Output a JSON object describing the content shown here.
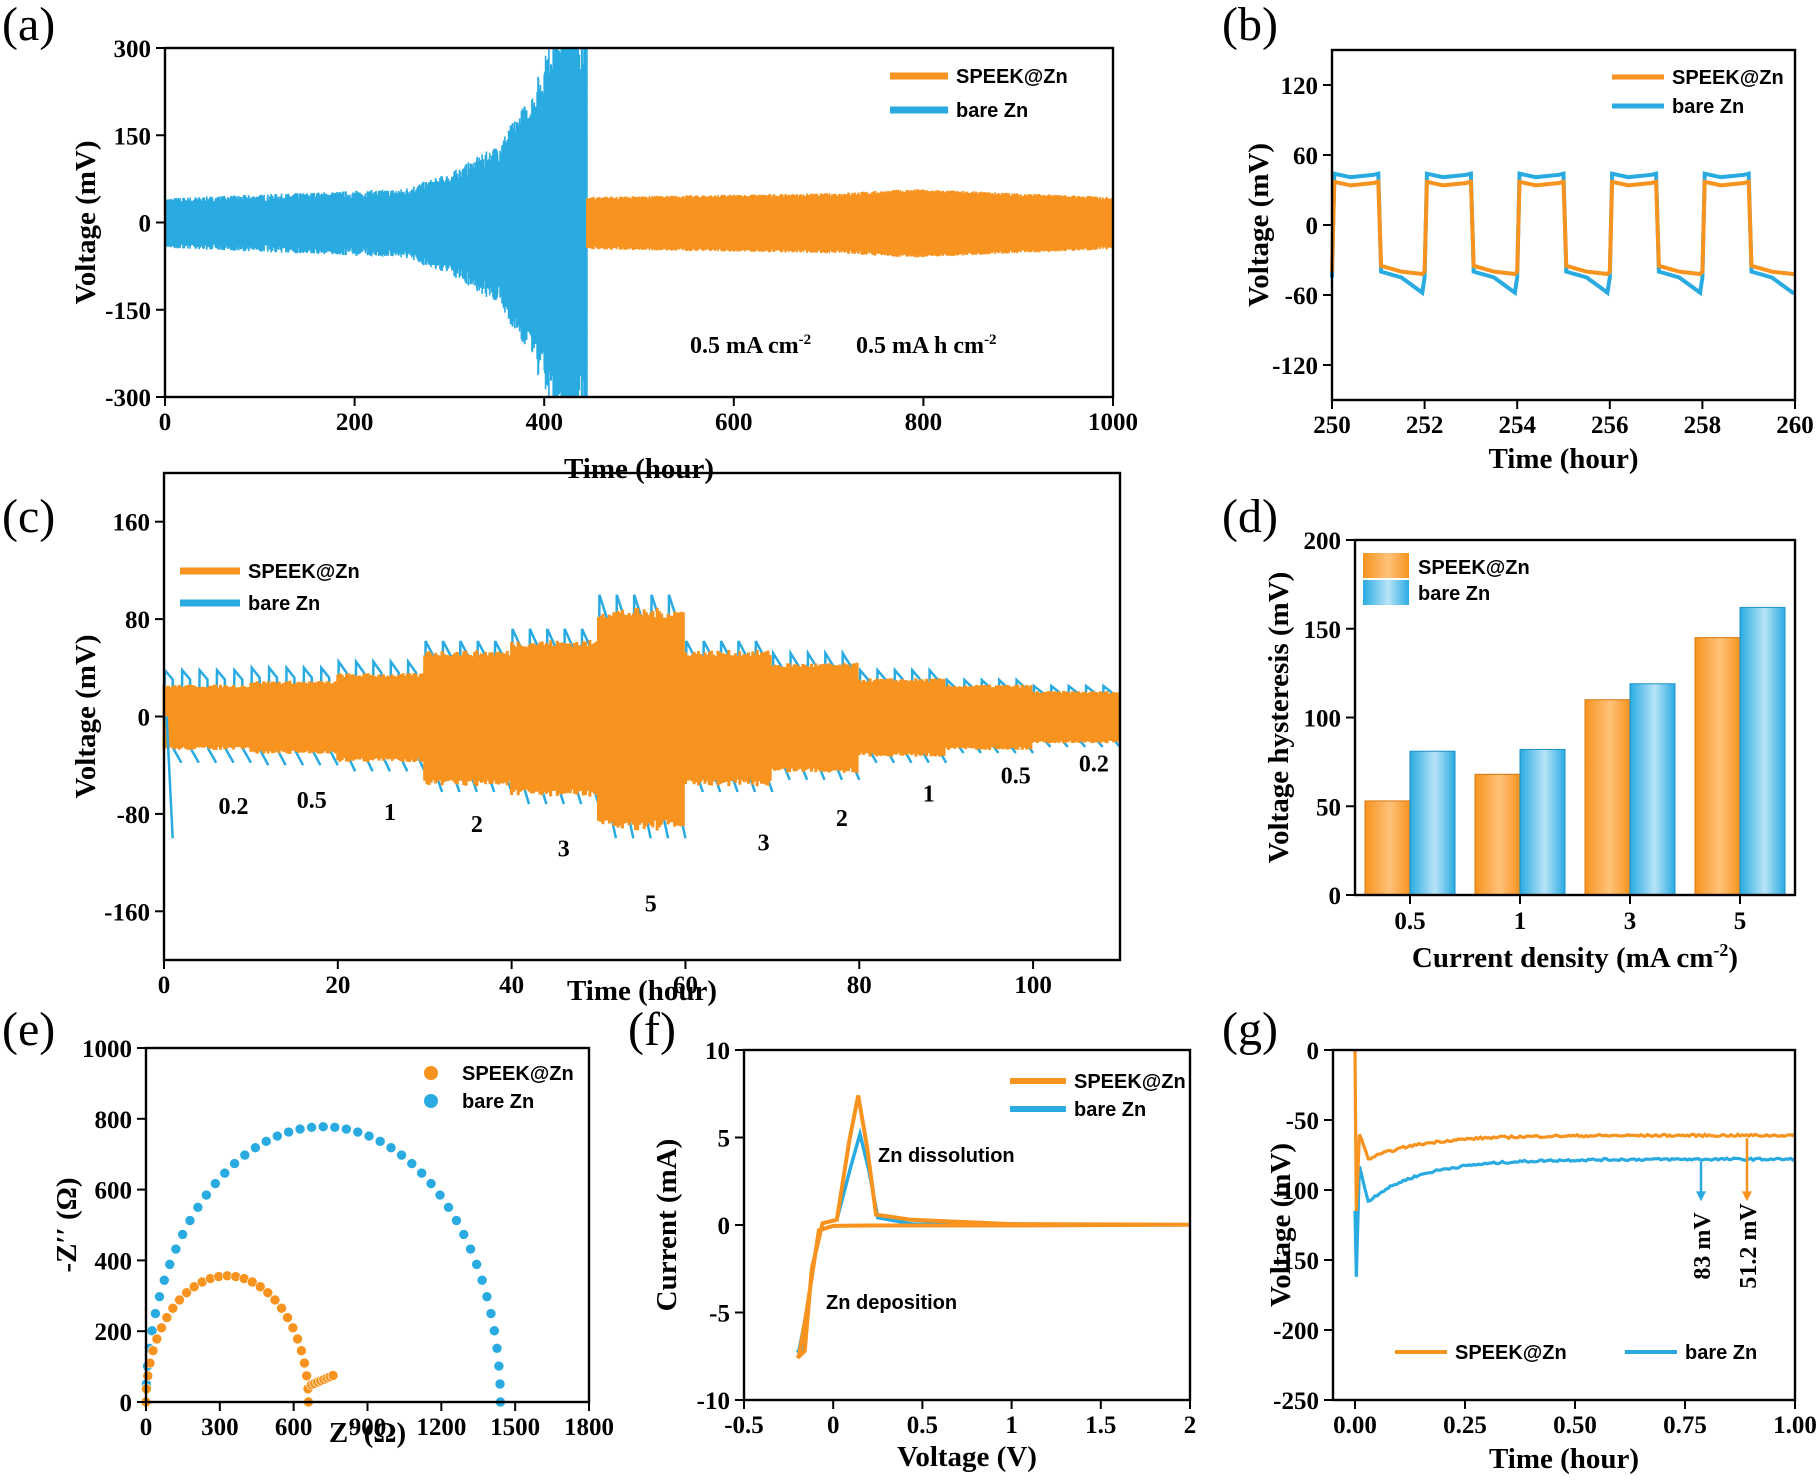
{
  "colors": {
    "speek": "#F7931E",
    "bare": "#29ABE2",
    "axis": "#000000"
  },
  "chart_data": [
    {
      "id": "a",
      "panel_label": "(a)",
      "type": "line",
      "xlabel": "Time (hour)",
      "ylabel": "Voltage (mV)",
      "xlim": [
        0,
        1000
      ],
      "ylim": [
        -300,
        300
      ],
      "xticks": [
        0,
        200,
        400,
        600,
        800,
        1000
      ],
      "yticks": [
        -300,
        -150,
        0,
        150,
        300
      ],
      "series": [
        {
          "name": "SPEEK@Zn",
          "color": "speek",
          "t_range": [
            0,
            1000
          ],
          "amplitude_mV": [
            [
              0,
              42
            ],
            [
              440,
              42
            ],
            [
              700,
              48
            ],
            [
              790,
              55
            ],
            [
              1000,
              42
            ]
          ]
        },
        {
          "name": "bare Zn",
          "color": "bare",
          "t_range": [
            0,
            445
          ],
          "amplitude_mV": [
            [
              0,
              35
            ],
            [
              100,
              40
            ],
            [
              250,
              48
            ],
            [
              300,
              70
            ],
            [
              350,
              110
            ],
            [
              390,
              190
            ],
            [
              410,
              300
            ],
            [
              445,
              300
            ]
          ]
        }
      ],
      "annotation_1": "0.5 mA cm",
      "annotation_1_sup": "-2",
      "annotation_2": "0.5 mA h cm",
      "annotation_2_sup": "-2"
    },
    {
      "id": "b",
      "panel_label": "(b)",
      "type": "line",
      "xlabel": "Time (hour)",
      "ylabel": "Voltage (mV)",
      "xlim": [
        250,
        260
      ],
      "ylim": [
        -150,
        150
      ],
      "xticks": [
        250,
        252,
        254,
        256,
        258,
        260
      ],
      "yticks": [
        -120,
        -60,
        0,
        60,
        120
      ],
      "series": [
        {
          "name": "SPEEK@Zn",
          "color": "speek",
          "charge_mV": 37,
          "discharge_mV": -40
        },
        {
          "name": "bare Zn",
          "color": "bare",
          "charge_mV": 44,
          "discharge_mV": -45,
          "spike_mV": -58
        }
      ]
    },
    {
      "id": "c",
      "panel_label": "(c)",
      "type": "line",
      "xlabel": "Time (hour)",
      "ylabel": "Voltage (mV)",
      "xlim": [
        0,
        110
      ],
      "ylim": [
        -200,
        200
      ],
      "xticks": [
        0,
        20,
        40,
        60,
        80,
        100
      ],
      "yticks": [
        -160,
        -80,
        0,
        80,
        160
      ],
      "rate_segments": [
        {
          "label": "0.2",
          "t": [
            0,
            10
          ],
          "speek_mV": 25,
          "bare_mV": 38
        },
        {
          "label": "0.5",
          "t": [
            10,
            20
          ],
          "speek_mV": 28,
          "bare_mV": 40
        },
        {
          "label": "1",
          "t": [
            20,
            30
          ],
          "speek_mV": 34,
          "bare_mV": 45
        },
        {
          "label": "2",
          "t": [
            30,
            40
          ],
          "speek_mV": 52,
          "bare_mV": 62
        },
        {
          "label": "3",
          "t": [
            40,
            50
          ],
          "speek_mV": 60,
          "bare_mV": 72
        },
        {
          "label": "5",
          "t": [
            50,
            60
          ],
          "speek_mV": 85,
          "bare_mV": 100
        },
        {
          "label": "3",
          "t": [
            60,
            70
          ],
          "speek_mV": 52,
          "bare_mV": 62
        },
        {
          "label": "2",
          "t": [
            70,
            80
          ],
          "speek_mV": 42,
          "bare_mV": 52
        },
        {
          "label": "1",
          "t": [
            80,
            90
          ],
          "speek_mV": 30,
          "bare_mV": 38
        },
        {
          "label": "0.5",
          "t": [
            90,
            100
          ],
          "speek_mV": 25,
          "bare_mV": 30
        },
        {
          "label": "0.2",
          "t": [
            100,
            110
          ],
          "speek_mV": 20,
          "bare_mV": 25
        }
      ],
      "series": [
        {
          "name": "SPEEK@Zn",
          "color": "speek"
        },
        {
          "name": "bare Zn",
          "color": "bare"
        }
      ]
    },
    {
      "id": "d",
      "panel_label": "(d)",
      "type": "bar",
      "xlabel": "Current density (mA cm",
      "xlabel_sup": "-2",
      "xlabel_end": ")",
      "ylabel": "Voltage hysteresis (mV)",
      "ylim": [
        0,
        200
      ],
      "yticks": [
        0,
        50,
        100,
        150,
        200
      ],
      "categories": [
        "0.5",
        "1",
        "3",
        "5"
      ],
      "series": [
        {
          "name": "SPEEK@Zn",
          "color": "speek",
          "values": [
            53,
            68,
            110,
            145
          ]
        },
        {
          "name": "bare Zn",
          "color": "bare",
          "values": [
            81,
            82,
            119,
            162
          ]
        }
      ]
    },
    {
      "id": "e",
      "panel_label": "(e)",
      "type": "scatter",
      "xlabel": "Z′ (Ω)",
      "ylabel": "-Z′′ (Ω)",
      "xlim": [
        0,
        1800
      ],
      "ylim": [
        0,
        1000
      ],
      "xticks": [
        0,
        300,
        600,
        900,
        1200,
        1500,
        1800
      ],
      "yticks": [
        0,
        200,
        400,
        600,
        800,
        1000
      ],
      "series": [
        {
          "name": "SPEEK@Zn",
          "color": "speek",
          "semicircle_R_ohm": [
            0,
            660
          ],
          "tail_to": [
            760,
            75
          ]
        },
        {
          "name": "bare Zn",
          "color": "bare",
          "semicircle_R_ohm": [
            0,
            1440
          ]
        }
      ]
    },
    {
      "id": "f",
      "panel_label": "(f)",
      "type": "line",
      "xlabel": "Voltage (V)",
      "ylabel": "Current (mA)",
      "xlim": [
        -0.5,
        2.0
      ],
      "ylim": [
        -10,
        10
      ],
      "xticks": [
        -0.5,
        0.0,
        0.5,
        1.0,
        1.5,
        2.0
      ],
      "yticks": [
        -10,
        -5,
        0,
        5,
        10
      ],
      "series": [
        {
          "name": "SPEEK@Zn",
          "color": "speek",
          "peak_V": 0.14,
          "peak_mA": 7.4,
          "min_mA": -7.6
        },
        {
          "name": "bare Zn",
          "color": "bare",
          "peak_V": 0.15,
          "peak_mA": 5.2,
          "min_mA": -7.3
        }
      ],
      "annotation_dissolution": "Zn dissolution",
      "annotation_deposition": "Zn deposition"
    },
    {
      "id": "g",
      "panel_label": "(g)",
      "type": "line",
      "xlabel": "Time (hour)",
      "ylabel": "Voltage (mV)",
      "xlim": [
        -0.05,
        1.0
      ],
      "ylim": [
        -250,
        0
      ],
      "xticks": [
        0.0,
        0.25,
        0.5,
        0.75,
        1.0
      ],
      "xticklabels": [
        "0.00",
        "0.25",
        "0.50",
        "0.75",
        "1.00"
      ],
      "yticks": [
        -250,
        -200,
        -150,
        -100,
        -50,
        0
      ],
      "series": [
        {
          "name": "SPEEK@Zn",
          "color": "speek",
          "min_mV": -115,
          "end_mV": -61
        },
        {
          "name": "bare Zn",
          "color": "bare",
          "min_mV": -162,
          "end_mV": -78
        }
      ],
      "marker_bare": "83 mV",
      "marker_speek": "51.2 mV"
    }
  ]
}
